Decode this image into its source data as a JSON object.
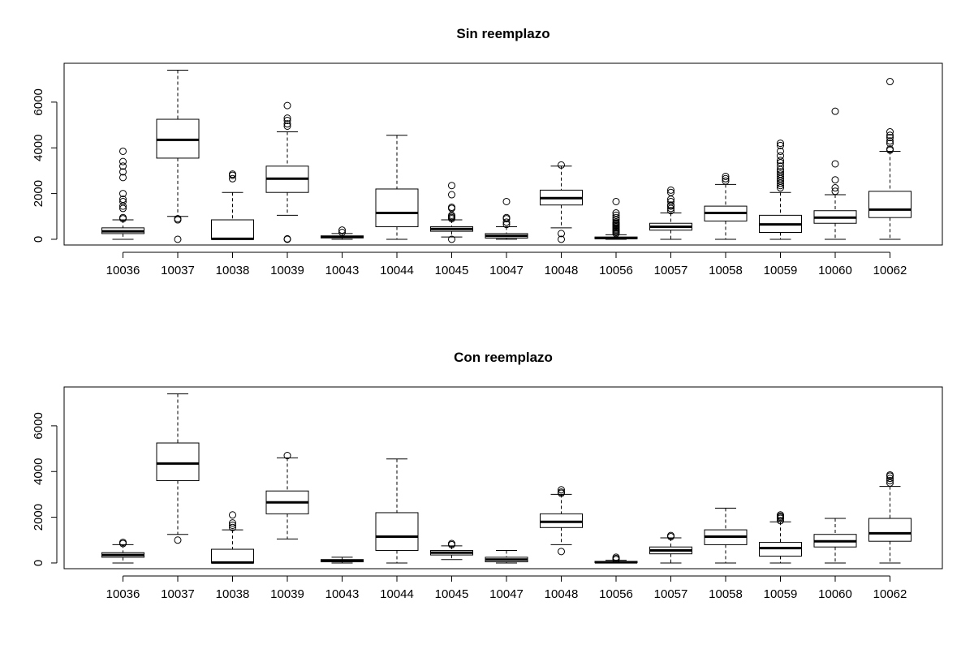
{
  "chart_data": [
    {
      "type": "boxplot",
      "title": "Sin reemplazo",
      "xlabel": "",
      "ylabel": "",
      "ylim": [
        -250,
        7700
      ],
      "yticks": [
        0,
        2000,
        4000,
        6000
      ],
      "grid": false,
      "categories": [
        "10036",
        "10037",
        "10038",
        "10039",
        "10043",
        "10044",
        "10045",
        "10047",
        "10048",
        "10056",
        "10057",
        "10058",
        "10059",
        "10060",
        "10062"
      ],
      "boxes": [
        {
          "low": 0,
          "q1": 250,
          "median": 350,
          "q3": 500,
          "high": 850,
          "outliers": [
            900,
            950,
            1350,
            1450,
            1650,
            1750,
            2000,
            2700,
            2950,
            3200,
            3400,
            3850
          ]
        },
        {
          "low": 1000,
          "q1": 3550,
          "median": 4350,
          "q3": 5250,
          "high": 7400,
          "outliers": [
            850,
            900,
            0
          ]
        },
        {
          "low": 0,
          "q1": 0,
          "median": 20,
          "q3": 850,
          "high": 2050,
          "outliers": [
            2650,
            2800,
            2850
          ]
        },
        {
          "low": 1050,
          "q1": 2050,
          "median": 2650,
          "q3": 3200,
          "high": 4700,
          "outliers": [
            0,
            20,
            4950,
            5050,
            5200,
            5300,
            5850
          ]
        },
        {
          "low": 0,
          "q1": 60,
          "median": 100,
          "q3": 150,
          "high": 250,
          "outliers": [
            300,
            400
          ]
        },
        {
          "low": 0,
          "q1": 550,
          "median": 1150,
          "q3": 2200,
          "high": 4550,
          "outliers": []
        },
        {
          "low": 100,
          "q1": 350,
          "median": 450,
          "q3": 550,
          "high": 850,
          "outliers": [
            0,
            900,
            950,
            1000,
            1050,
            1350,
            1400,
            1950,
            2350
          ]
        },
        {
          "low": 0,
          "q1": 50,
          "median": 150,
          "q3": 250,
          "high": 550,
          "outliers": [
            650,
            750,
            900,
            950,
            1650
          ]
        },
        {
          "low": 500,
          "q1": 1500,
          "median": 1800,
          "q3": 2150,
          "high": 3200,
          "outliers": [
            0,
            250,
            3250
          ]
        },
        {
          "low": 0,
          "q1": 20,
          "median": 50,
          "q3": 100,
          "high": 200,
          "outliers": [
            250,
            300,
            350,
            400,
            450,
            500,
            550,
            600,
            650,
            700,
            750,
            850,
            950,
            1050,
            1150,
            1650
          ]
        },
        {
          "low": 0,
          "q1": 400,
          "median": 550,
          "q3": 700,
          "high": 1150,
          "outliers": [
            1250,
            1350,
            1450,
            1500,
            1650,
            1750,
            2050,
            2150
          ]
        },
        {
          "low": 0,
          "q1": 800,
          "median": 1150,
          "q3": 1450,
          "high": 2400,
          "outliers": [
            2550,
            2650,
            2750
          ]
        },
        {
          "low": 0,
          "q1": 300,
          "median": 650,
          "q3": 1050,
          "high": 2050,
          "outliers": [
            2250,
            2350,
            2450,
            2550,
            2650,
            2750,
            2850,
            2950,
            3050,
            3200,
            3350,
            3450,
            3650,
            3850,
            4100,
            4200
          ]
        },
        {
          "low": 0,
          "q1": 700,
          "median": 950,
          "q3": 1250,
          "high": 1950,
          "outliers": [
            2100,
            2250,
            2600,
            3300,
            5600
          ]
        },
        {
          "low": 0,
          "q1": 950,
          "median": 1300,
          "q3": 2100,
          "high": 3850,
          "outliers": [
            3900,
            3950,
            4200,
            4300,
            4450,
            4550,
            4700,
            6900
          ]
        }
      ]
    },
    {
      "type": "boxplot",
      "title": "Con reemplazo",
      "xlabel": "",
      "ylabel": "",
      "ylim": [
        -250,
        7700
      ],
      "yticks": [
        0,
        2000,
        4000,
        6000
      ],
      "grid": false,
      "categories": [
        "10036",
        "10037",
        "10038",
        "10039",
        "10043",
        "10044",
        "10045",
        "10047",
        "10048",
        "10056",
        "10057",
        "10058",
        "10059",
        "10060",
        "10062"
      ],
      "boxes": [
        {
          "low": 0,
          "q1": 250,
          "median": 350,
          "q3": 450,
          "high": 800,
          "outliers": [
            850,
            900
          ]
        },
        {
          "low": 1250,
          "q1": 3600,
          "median": 4350,
          "q3": 5250,
          "high": 7400,
          "outliers": [
            1000
          ]
        },
        {
          "low": 0,
          "q1": 0,
          "median": 20,
          "q3": 600,
          "high": 1450,
          "outliers": [
            1550,
            1650,
            1750,
            2100
          ]
        },
        {
          "low": 1050,
          "q1": 2150,
          "median": 2650,
          "q3": 3150,
          "high": 4600,
          "outliers": [
            4700
          ]
        },
        {
          "low": 0,
          "q1": 50,
          "median": 100,
          "q3": 150,
          "high": 250,
          "outliers": []
        },
        {
          "low": 0,
          "q1": 550,
          "median": 1150,
          "q3": 2200,
          "high": 4550,
          "outliers": []
        },
        {
          "low": 150,
          "q1": 350,
          "median": 450,
          "q3": 550,
          "high": 750,
          "outliers": [
            800,
            850
          ]
        },
        {
          "low": 0,
          "q1": 50,
          "median": 150,
          "q3": 250,
          "high": 550,
          "outliers": []
        },
        {
          "low": 800,
          "q1": 1550,
          "median": 1800,
          "q3": 2150,
          "high": 3000,
          "outliers": [
            500,
            3050,
            3100,
            3200
          ]
        },
        {
          "low": 0,
          "q1": 10,
          "median": 30,
          "q3": 70,
          "high": 120,
          "outliers": [
            150,
            200,
            250
          ]
        },
        {
          "low": 0,
          "q1": 400,
          "median": 550,
          "q3": 700,
          "high": 1100,
          "outliers": [
            1150,
            1200
          ]
        },
        {
          "low": 0,
          "q1": 800,
          "median": 1150,
          "q3": 1450,
          "high": 2400,
          "outliers": []
        },
        {
          "low": 0,
          "q1": 300,
          "median": 650,
          "q3": 900,
          "high": 1800,
          "outliers": [
            1850,
            1950,
            2000,
            2050,
            2100
          ]
        },
        {
          "low": 0,
          "q1": 700,
          "median": 950,
          "q3": 1250,
          "high": 1950,
          "outliers": []
        },
        {
          "low": 0,
          "q1": 950,
          "median": 1300,
          "q3": 1950,
          "high": 3350,
          "outliers": [
            3500,
            3600,
            3700,
            3800,
            3850
          ]
        }
      ]
    }
  ]
}
